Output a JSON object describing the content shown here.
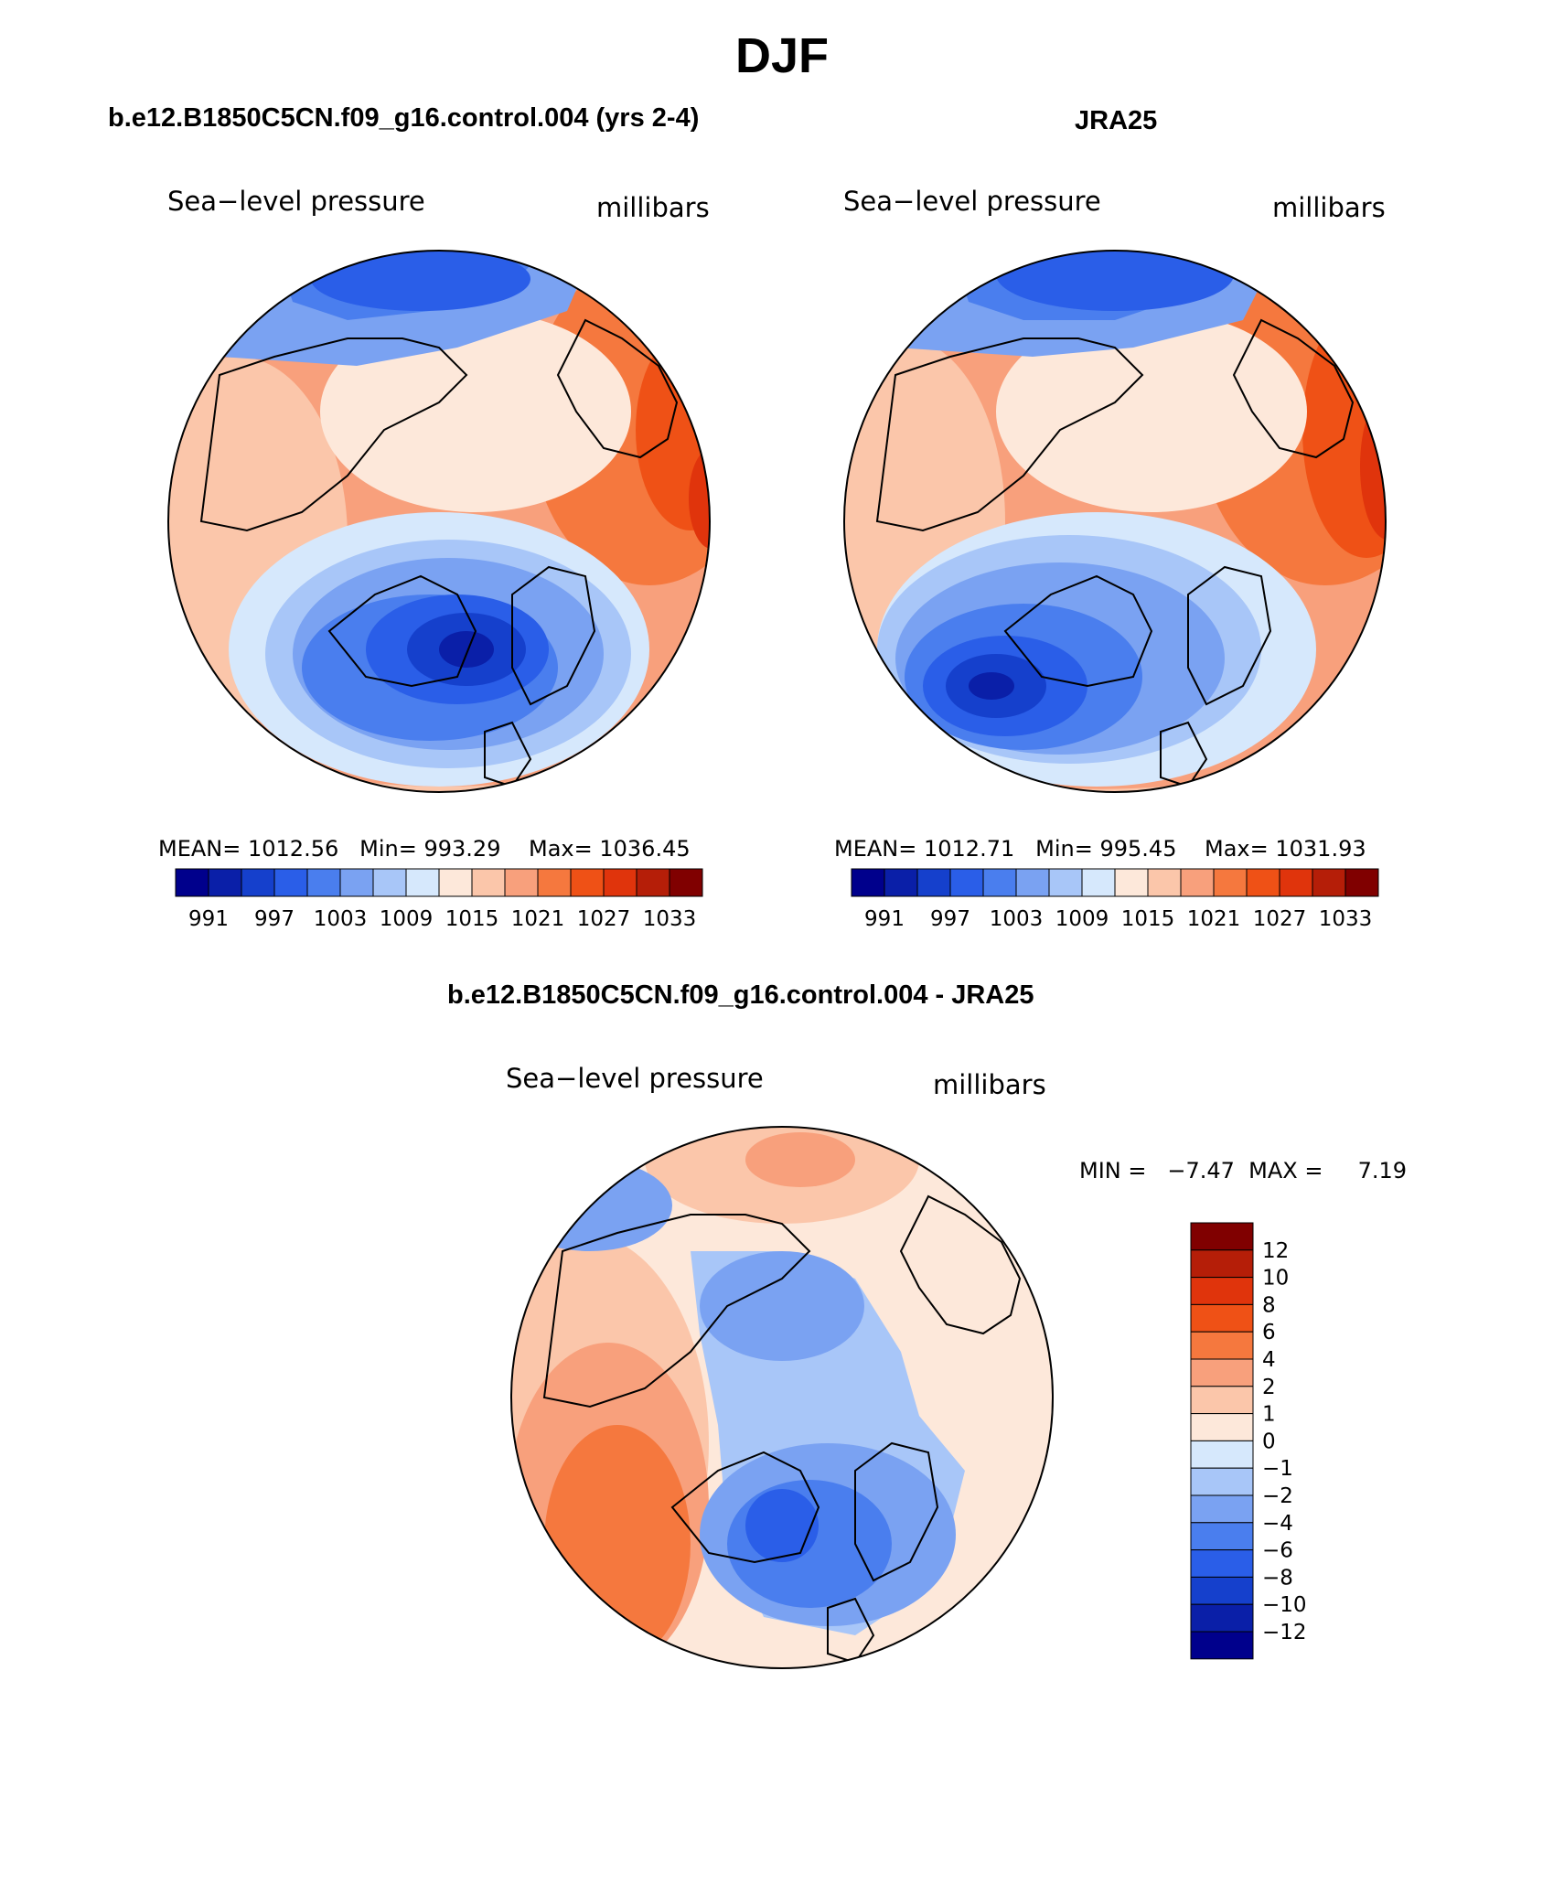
{
  "page": {
    "title": "DJF"
  },
  "panels": [
    {
      "title": "b.e12.B1850C5CN.f09_g16.control.004 (yrs 2-4)",
      "left_label": "Sea−level pressure",
      "right_label": "millibars",
      "stats": {
        "mean_label": "MEAN=",
        "mean": "1012.56",
        "min_label": "Min=",
        "min": "993.29",
        "max_label": "Max=",
        "max": "1036.45"
      }
    },
    {
      "title": "JRA25",
      "left_label": "Sea−level pressure",
      "right_label": "millibars",
      "stats": {
        "mean_label": "MEAN=",
        "mean": "1012.71",
        "min_label": "Min=",
        "min": "995.45",
        "max_label": "Max=",
        "max": "1031.93"
      }
    }
  ],
  "diff_panel": {
    "title": "b.e12.B1850C5CN.f09_g16.control.004 - JRA25",
    "left_label": "Sea−level pressure",
    "right_label": "millibars",
    "minmax": "MIN =   −7.47  MAX =     7.19"
  },
  "slp_colorbar": {
    "colors": [
      "#00008c",
      "#0a1fa8",
      "#1540cc",
      "#2a5ee8",
      "#4a7eee",
      "#7aa2f2",
      "#a8c6f8",
      "#d6e8fc",
      "#fde8da",
      "#fbc6aa",
      "#f8a07c",
      "#f5783e",
      "#ef5116",
      "#e0340c",
      "#b51e08",
      "#800000"
    ],
    "tick_labels": [
      "991",
      "997",
      "1003",
      "1009",
      "1015",
      "1021",
      "1027",
      "1033"
    ]
  },
  "diff_colorbar": {
    "colors": [
      "#800000",
      "#b51e08",
      "#e0340c",
      "#ef5116",
      "#f5783e",
      "#f8a07c",
      "#fbc6aa",
      "#fde8da",
      "#d6e8fc",
      "#a8c6f8",
      "#7aa2f2",
      "#4a7eee",
      "#2a5ee8",
      "#1540cc",
      "#0a1fa8",
      "#00008c"
    ],
    "tick_labels": [
      "12",
      "10",
      "8",
      "6",
      "4",
      "2",
      "1",
      "0",
      "−1",
      "−2",
      "−4",
      "−6",
      "−8",
      "−10",
      "−12"
    ]
  }
}
